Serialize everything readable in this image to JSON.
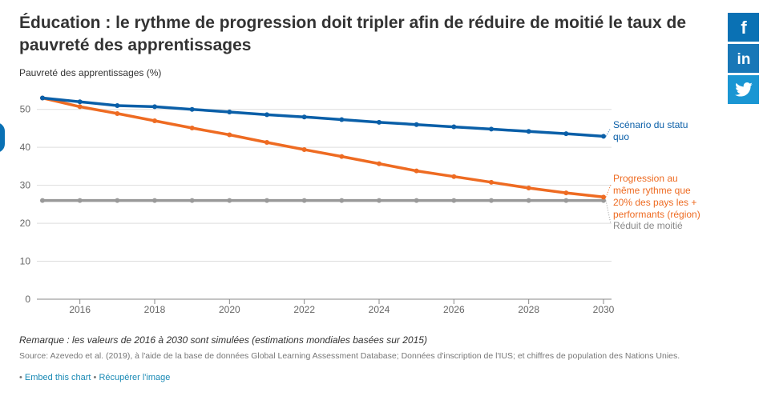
{
  "title": "Éducation : le rythme de progression doit tripler afin de réduire de moitié le taux de pauvreté des apprentissages",
  "note": "Remarque : les valeurs de 2016 à 2030 sont simulées (estimations mondiales basées sur 2015)",
  "source": "Source: Azevedo et al. (2019), à l'aide de la base de données Global Learning Assessment Database; Données d'inscription de l'IUS; et chiffres de population des Nations Unies.",
  "links": {
    "bullet": "•",
    "embed": "Embed this chart",
    "separator": "•",
    "download": "Récupérer l'image"
  },
  "share": {
    "facebook": "facebook-icon",
    "linkedin": "linkedin-icon",
    "twitter": "twitter-icon"
  },
  "colors": {
    "blue": "#0a5fa8",
    "orange": "#ee6b22",
    "gray": "#999999"
  },
  "chart_data": {
    "type": "line",
    "ylabel": "Pauvreté des apprentissages (%)",
    "xlabel": "",
    "xlim": [
      2015,
      2030
    ],
    "ylim": [
      0,
      55
    ],
    "yticks": [
      0,
      10,
      20,
      30,
      40,
      50
    ],
    "xticks": [
      2016,
      2018,
      2020,
      2022,
      2024,
      2026,
      2028,
      2030
    ],
    "grid": true,
    "x": [
      2015,
      2016,
      2017,
      2018,
      2019,
      2020,
      2021,
      2022,
      2023,
      2024,
      2025,
      2026,
      2027,
      2028,
      2029,
      2030
    ],
    "series": [
      {
        "name": "Scénario du statu quo",
        "label_lines": [
          "Scénario du statu",
          "quo"
        ],
        "color": "#0a5fa8",
        "values": [
          53.0,
          52.0,
          51.0,
          50.7,
          50.0,
          49.3,
          48.6,
          48.0,
          47.3,
          46.6,
          46.0,
          45.4,
          44.8,
          44.2,
          43.6,
          42.9
        ]
      },
      {
        "name": "Progression au même rythme que 20% des pays les + performants (région)",
        "label_lines": [
          "Progression au",
          "même rythme que",
          "20% des pays les +",
          "performants (région)"
        ],
        "color": "#ee6b22",
        "values": [
          53.0,
          50.7,
          48.9,
          47.0,
          45.1,
          43.3,
          41.3,
          39.4,
          37.6,
          35.7,
          33.8,
          32.3,
          30.8,
          29.3,
          28.0,
          26.9
        ]
      },
      {
        "name": "Réduit de moitié",
        "label_lines": [
          "Réduit de moitié"
        ],
        "color": "#999999",
        "values": [
          26,
          26,
          26,
          26,
          26,
          26,
          26,
          26,
          26,
          26,
          26,
          26,
          26,
          26,
          26,
          26
        ]
      }
    ]
  }
}
